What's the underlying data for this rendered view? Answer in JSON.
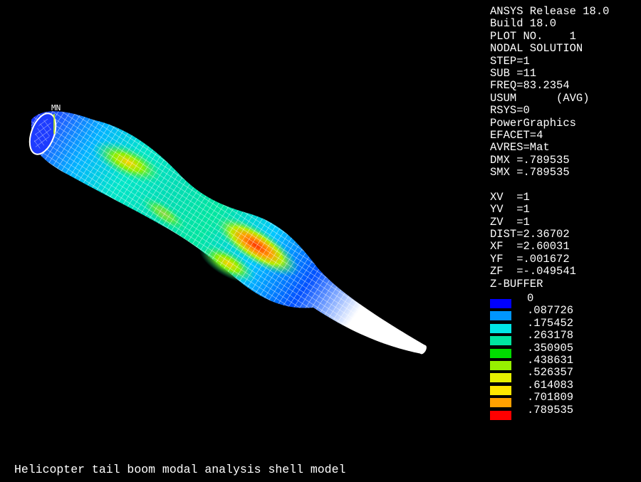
{
  "info_lines": [
    "ANSYS Release 18.0",
    "Build 18.0",
    "PLOT NO.    1",
    "NODAL SOLUTION",
    "STEP=1",
    "SUB =11",
    "FREQ=83.2354",
    "USUM      (AVG)",
    "RSYS=0",
    "PowerGraphics",
    "EFACET=4",
    "AVRES=Mat",
    "DMX =.789535",
    "SMX =.789535"
  ],
  "view_lines": [
    "XV  =1",
    "YV  =1",
    "ZV  =1",
    "DIST=2.36702",
    "XF  =2.60031",
    "YF  =.001672",
    "ZF  =-.049541",
    "Z-BUFFER"
  ],
  "legend": {
    "values": [
      "0",
      ".087726",
      ".175452",
      ".263178",
      ".350905",
      ".438631",
      ".526357",
      ".614083",
      ".701809",
      ".789535"
    ],
    "colors": [
      "#0000ff",
      "#0096ff",
      "#00e6e6",
      "#00e6a0",
      "#00dc00",
      "#96f000",
      "#e6f000",
      "#ffe600",
      "#ffa000",
      "#ff0000"
    ]
  },
  "model": {
    "mn_label": "MN"
  },
  "title": "Helicopter tail boom modal analysis shell model"
}
